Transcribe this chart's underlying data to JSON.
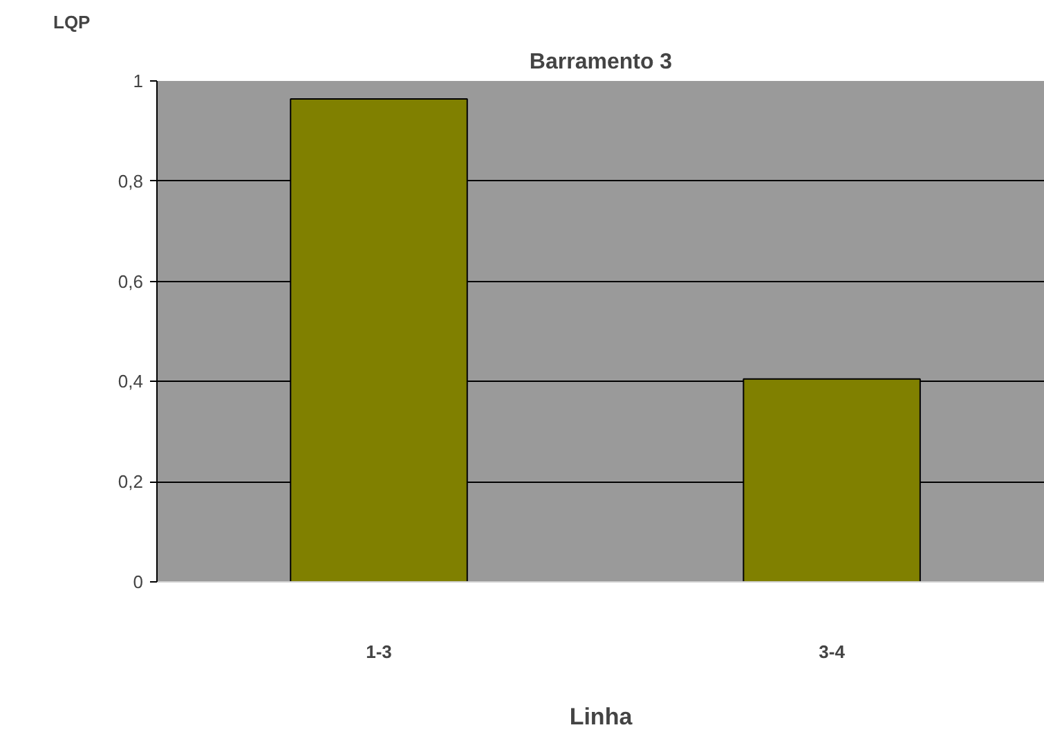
{
  "chart_data": {
    "type": "bar",
    "title": "Barramento 3",
    "xlabel": "Linha",
    "ylabel": "LQP",
    "categories": [
      "1-3",
      "3-4"
    ],
    "values": [
      0.964,
      0.405
    ],
    "color": "#808000",
    "ylim": [
      0,
      1
    ],
    "yticks": [
      0,
      {
        "value": 0.2,
        "label": "0,2"
      },
      {
        "value": 0.4,
        "label": "0,4"
      },
      {
        "value": 0.6,
        "label": "0,6"
      },
      {
        "value": 0.8,
        "label": "0,8"
      },
      1
    ],
    "grid": "y"
  }
}
